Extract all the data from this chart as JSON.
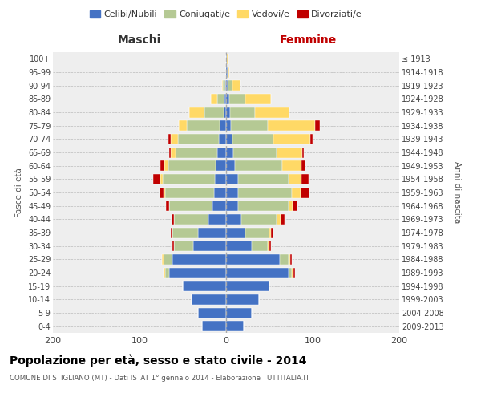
{
  "age_groups": [
    "0-4",
    "5-9",
    "10-14",
    "15-19",
    "20-24",
    "25-29",
    "30-34",
    "35-39",
    "40-44",
    "45-49",
    "50-54",
    "55-59",
    "60-64",
    "65-69",
    "70-74",
    "75-79",
    "80-84",
    "85-89",
    "90-94",
    "95-99",
    "100+"
  ],
  "birth_years": [
    "2009-2013",
    "2004-2008",
    "1999-2003",
    "1994-1998",
    "1989-1993",
    "1984-1988",
    "1979-1983",
    "1974-1978",
    "1969-1973",
    "1964-1968",
    "1959-1963",
    "1954-1958",
    "1949-1953",
    "1944-1948",
    "1939-1943",
    "1934-1938",
    "1929-1933",
    "1924-1928",
    "1919-1923",
    "1914-1918",
    "≤ 1913"
  ],
  "colors": {
    "celibi": "#4472C4",
    "coniugati": "#B5C994",
    "vedovi": "#FFD966",
    "divorziati": "#C00000"
  },
  "male": {
    "celibi": [
      28,
      32,
      40,
      50,
      66,
      62,
      38,
      32,
      20,
      16,
      14,
      13,
      12,
      10,
      8,
      7,
      3,
      2,
      1,
      0,
      0
    ],
    "coniugati": [
      0,
      0,
      0,
      0,
      4,
      10,
      22,
      30,
      40,
      50,
      56,
      60,
      55,
      48,
      48,
      38,
      22,
      8,
      3,
      0,
      0
    ],
    "vedovi": [
      0,
      0,
      0,
      0,
      2,
      2,
      0,
      0,
      0,
      0,
      2,
      3,
      4,
      6,
      8,
      10,
      18,
      8,
      1,
      0,
      0
    ],
    "divorziati": [
      0,
      0,
      0,
      0,
      0,
      0,
      2,
      2,
      3,
      3,
      5,
      8,
      5,
      2,
      3,
      0,
      0,
      0,
      0,
      0,
      0
    ]
  },
  "female": {
    "celibi": [
      20,
      30,
      38,
      50,
      72,
      62,
      30,
      22,
      18,
      14,
      14,
      14,
      10,
      8,
      7,
      6,
      5,
      4,
      2,
      2,
      1
    ],
    "coniugati": [
      0,
      0,
      0,
      0,
      4,
      10,
      18,
      28,
      40,
      58,
      62,
      58,
      55,
      50,
      48,
      42,
      28,
      18,
      5,
      0,
      0
    ],
    "vedovi": [
      0,
      0,
      0,
      0,
      2,
      2,
      2,
      2,
      5,
      5,
      10,
      15,
      22,
      30,
      42,
      55,
      40,
      30,
      10,
      2,
      2
    ],
    "divorziati": [
      0,
      0,
      0,
      0,
      2,
      2,
      2,
      3,
      5,
      5,
      10,
      8,
      5,
      2,
      3,
      5,
      0,
      0,
      0,
      0,
      0
    ]
  },
  "title": "Popolazione per età, sesso e stato civile - 2014",
  "subtitle": "COMUNE DI STIGLIANO (MT) - Dati ISTAT 1° gennaio 2014 - Elaborazione TUTTITALIA.IT",
  "xlabel_left": "Maschi",
  "xlabel_right": "Femmine",
  "ylabel_left": "Fasce di età",
  "ylabel_right": "Anni di nascita",
  "legend_labels": [
    "Celibi/Nubili",
    "Coniugati/e",
    "Vedovi/e",
    "Divorziati/e"
  ],
  "xlim": 200,
  "background_color": "#ffffff"
}
